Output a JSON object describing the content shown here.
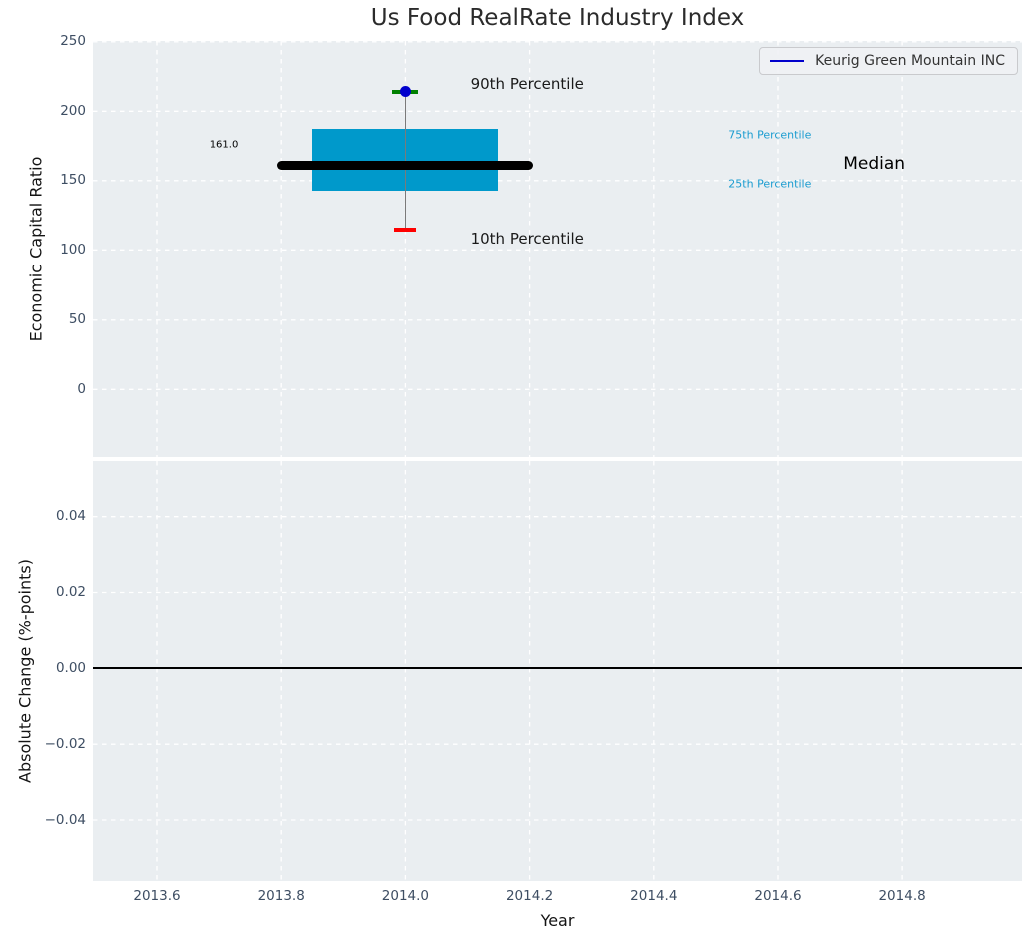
{
  "figure": {
    "background": "#ffffff",
    "plot_background": "#eaeef1",
    "grid_color": "#ffffff",
    "tick_color": "#3e4e63"
  },
  "legend": {
    "label": "Keurig Green Mountain INC",
    "line_color": "#0000cc",
    "position": "upper right"
  },
  "chart_data": {
    "type": "bar",
    "subtype": "boxplot-with-whiskers-two-panel",
    "title": "Us Food RealRate Industry Index",
    "series_name": "Keurig Green Mountain INC",
    "xlabel": "Year",
    "xlim": [
      2013.497,
      2014.993
    ],
    "xticks": [
      2013.6,
      2013.8,
      2014.0,
      2014.2,
      2014.4,
      2014.6,
      2014.8
    ],
    "grid": "white dashed, on",
    "legend_position": "upper right",
    "top_panel": {
      "ylabel": "Economic Capital Ratio",
      "ylim": [
        -48.7,
        250.6
      ],
      "yticks": [
        0,
        50,
        100,
        150,
        200,
        250
      ],
      "boxes": [
        {
          "x": 2014.0,
          "median": 161.0,
          "q1": 143,
          "q3": 187,
          "p10": 114.5,
          "p90": 214,
          "box_halfwidth": 0.15,
          "median_line_halfwidth": 0.206,
          "box_color": "#0099cb",
          "median_color": "#000000",
          "whisker_color": "#7a7a7a",
          "p90_cap_color": "#008000",
          "p10_cap_color": "#fe0000",
          "marker_color": "#0000cd"
        }
      ],
      "annotations": [
        {
          "text": "161.0",
          "x": 2013.685,
          "y": 176,
          "size": 10,
          "color": "#000000"
        },
        {
          "text": "90th Percentile",
          "x": 2014.105,
          "y": 220,
          "size": 15,
          "color": "#1a1a1a"
        },
        {
          "text": "10th Percentile",
          "x": 2014.105,
          "y": 108,
          "size": 15,
          "color": "#1a1a1a"
        },
        {
          "text": "75th Percentile",
          "x": 2014.52,
          "y": 183,
          "size": 11,
          "color": "#1b9cd0"
        },
        {
          "text": "25th Percentile",
          "x": 2014.52,
          "y": 148,
          "size": 11,
          "color": "#1b9cd0"
        },
        {
          "text": "Median",
          "x": 2014.705,
          "y": 162.5,
          "size": 17,
          "color": "#000000"
        }
      ]
    },
    "bottom_panel": {
      "ylabel": "Absolute Change (%-points)",
      "ylim": [
        -0.0561,
        0.0547
      ],
      "yticks": [
        -0.04,
        -0.02,
        0.0,
        0.02,
        0.04
      ],
      "zero_line": 0.0,
      "zero_line_color": "#000000"
    }
  }
}
